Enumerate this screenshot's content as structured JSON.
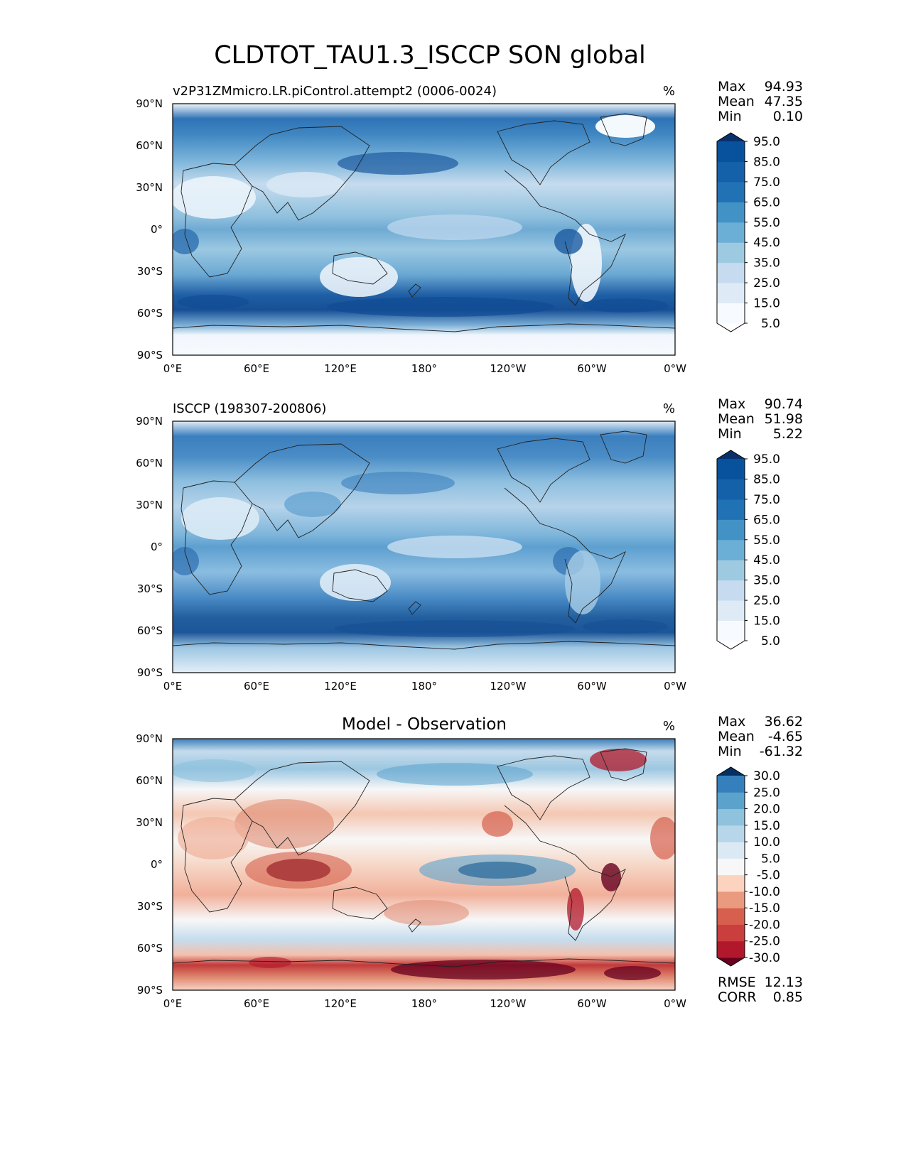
{
  "title": "CLDTOT_TAU1.3_ISCCP SON global",
  "lon_ticks": [
    "0°E",
    "60°E",
    "120°E",
    "180°",
    "120°W",
    "60°W",
    "0°W"
  ],
  "lat_ticks": [
    "90°N",
    "60°N",
    "30°N",
    "0°",
    "30°S",
    "60°S",
    "90°S"
  ],
  "chart_data": [
    {
      "type": "heatmap",
      "title_left": "v2P31ZMmicro.LR.piControl.attempt2 (0006-0024)",
      "title_center": "",
      "units": "%",
      "stats": [
        {
          "label": "Max",
          "value": "94.93"
        },
        {
          "label": "Mean",
          "value": "47.35"
        },
        {
          "label": "Min",
          "value": "0.10"
        }
      ],
      "colorbar": {
        "levels": [
          "5.0",
          "15.0",
          "25.0",
          "35.0",
          "45.0",
          "55.0",
          "65.0",
          "75.0",
          "85.0",
          "95.0"
        ],
        "colors": [
          "#ffffff",
          "#f7fbff",
          "#deebf7",
          "#c6dbef",
          "#9ecae1",
          "#6baed6",
          "#4292c6",
          "#2171b5",
          "#1561a9",
          "#08519c",
          "#08306b"
        ]
      },
      "xlabel": "",
      "ylabel": "",
      "xlim": [
        0,
        360
      ],
      "ylim": [
        -90,
        90
      ]
    },
    {
      "type": "heatmap",
      "title_left": "ISCCP (198307-200806)",
      "title_center": "",
      "units": "%",
      "stats": [
        {
          "label": "Max",
          "value": "90.74"
        },
        {
          "label": "Mean",
          "value": "51.98"
        },
        {
          "label": "Min",
          "value": "5.22"
        }
      ],
      "colorbar": {
        "levels": [
          "5.0",
          "15.0",
          "25.0",
          "35.0",
          "45.0",
          "55.0",
          "65.0",
          "75.0",
          "85.0",
          "95.0"
        ],
        "colors": [
          "#ffffff",
          "#f7fbff",
          "#deebf7",
          "#c6dbef",
          "#9ecae1",
          "#6baed6",
          "#4292c6",
          "#2171b5",
          "#1561a9",
          "#08519c",
          "#08306b"
        ]
      },
      "xlabel": "",
      "ylabel": "",
      "xlim": [
        0,
        360
      ],
      "ylim": [
        -90,
        90
      ]
    },
    {
      "type": "heatmap",
      "title_left": "",
      "title_center": "Model - Observation",
      "units": "%",
      "stats": [
        {
          "label": "Max",
          "value": "36.62"
        },
        {
          "label": "Mean",
          "value": "-4.65"
        },
        {
          "label": "Min",
          "value": "-61.32"
        }
      ],
      "extra_stats": [
        {
          "label": "RMSE",
          "value": "12.13"
        },
        {
          "label": "CORR",
          "value": "0.85"
        }
      ],
      "colorbar": {
        "levels": [
          "-30.0",
          "-25.0",
          "-20.0",
          "-15.0",
          "-10.0",
          "-5.0",
          "5.0",
          "10.0",
          "15.0",
          "20.0",
          "25.0",
          "30.0"
        ],
        "colors": [
          "#67001f",
          "#b2182b",
          "#cb3e3e",
          "#d6604d",
          "#ea9a7f",
          "#fbd3bf",
          "#f7f7f7",
          "#dbe9f4",
          "#b7d6e9",
          "#8ec2dd",
          "#5ba3cd",
          "#3580bc",
          "#053061"
        ]
      },
      "xlabel": "",
      "ylabel": "",
      "xlim": [
        0,
        360
      ],
      "ylim": [
        -90,
        90
      ]
    }
  ]
}
